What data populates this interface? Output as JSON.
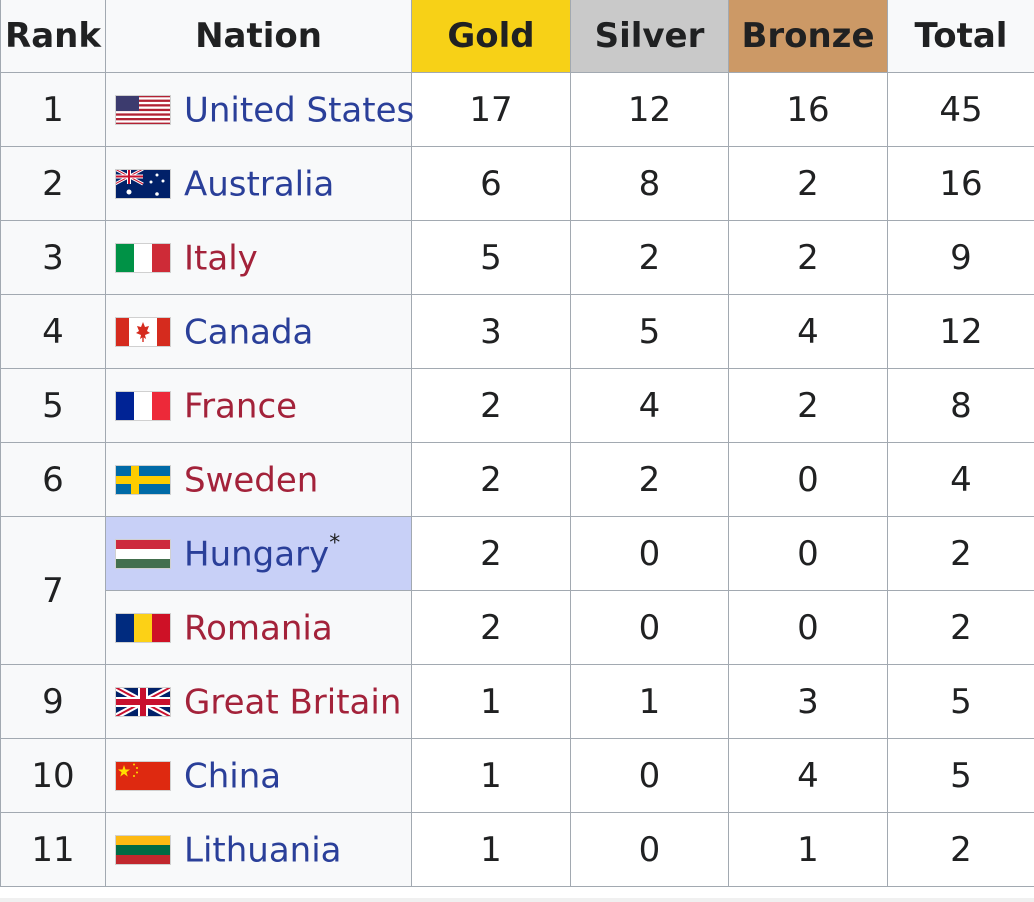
{
  "headers": {
    "rank": "Rank",
    "nation": "Nation",
    "gold": "Gold",
    "silver": "Silver",
    "bronze": "Bronze",
    "total": "Total"
  },
  "colors": {
    "gold": "#f7d117",
    "silver": "#c9c9c9",
    "bronze": "#cc9966",
    "host_highlight": "#c8d0f7",
    "link_blue": "#2a3f99",
    "link_red": "#a3223a"
  },
  "rows": [
    {
      "rank": "1",
      "nation": "United States",
      "flag": "flag-usa-icon",
      "gold": "17",
      "silver": "12",
      "bronze": "16",
      "total": "45"
    },
    {
      "rank": "2",
      "nation": "Australia",
      "flag": "flag-australia-icon",
      "gold": "6",
      "silver": "8",
      "bronze": "2",
      "total": "16"
    },
    {
      "rank": "3",
      "nation": "Italy",
      "flag": "flag-italy-icon",
      "gold": "5",
      "silver": "2",
      "bronze": "2",
      "total": "9"
    },
    {
      "rank": "4",
      "nation": "Canada",
      "flag": "flag-canada-icon",
      "gold": "3",
      "silver": "5",
      "bronze": "4",
      "total": "12"
    },
    {
      "rank": "5",
      "nation": "France",
      "flag": "flag-france-icon",
      "gold": "2",
      "silver": "4",
      "bronze": "2",
      "total": "8"
    },
    {
      "rank": "6",
      "nation": "Sweden",
      "flag": "flag-sweden-icon",
      "gold": "2",
      "silver": "2",
      "bronze": "0",
      "total": "4"
    },
    {
      "rank": "7",
      "nation": "Hungary",
      "host_mark": "*",
      "flag": "flag-hungary-icon",
      "gold": "2",
      "silver": "0",
      "bronze": "0",
      "total": "2"
    },
    {
      "rank": "",
      "nation": "Romania",
      "flag": "flag-romania-icon",
      "gold": "2",
      "silver": "0",
      "bronze": "0",
      "total": "2"
    },
    {
      "rank": "9",
      "nation": "Great Britain",
      "flag": "flag-great-britain-icon",
      "gold": "1",
      "silver": "1",
      "bronze": "3",
      "total": "5"
    },
    {
      "rank": "10",
      "nation": "China",
      "flag": "flag-china-icon",
      "gold": "1",
      "silver": "0",
      "bronze": "4",
      "total": "5"
    },
    {
      "rank": "11",
      "nation": "Lithuania",
      "flag": "flag-lithuania-icon",
      "gold": "1",
      "silver": "0",
      "bronze": "1",
      "total": "2"
    }
  ]
}
